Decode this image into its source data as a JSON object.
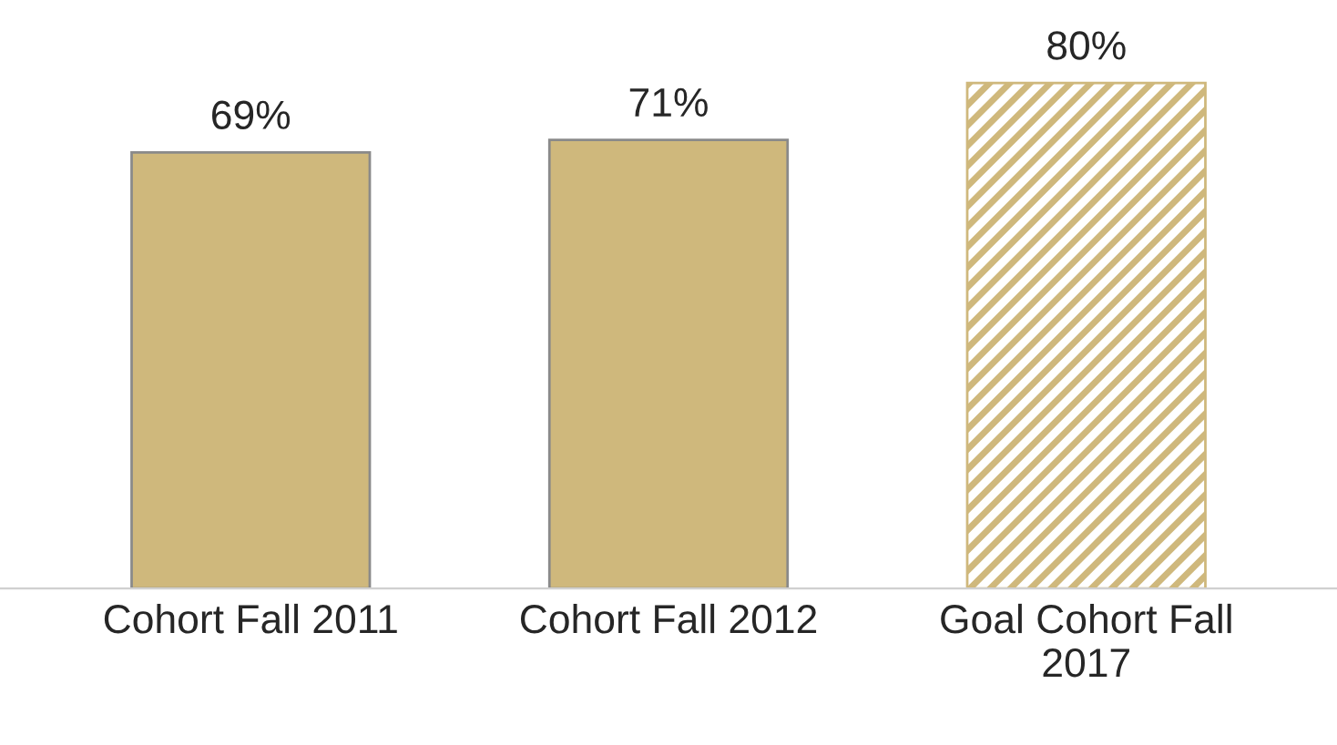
{
  "chart_data": {
    "type": "bar",
    "categories": [
      "Cohort Fall 2011",
      "Cohort Fall 2012",
      "Goal Cohort Fall\n2017"
    ],
    "values": [
      69,
      71,
      80
    ],
    "value_labels": [
      "69%",
      "71%",
      "80%"
    ],
    "colors": [
      "#cfb87c",
      "#cfb87c",
      "#cfb87c"
    ],
    "tick_labels": "x",
    "grid": false,
    "legend": false
  }
}
